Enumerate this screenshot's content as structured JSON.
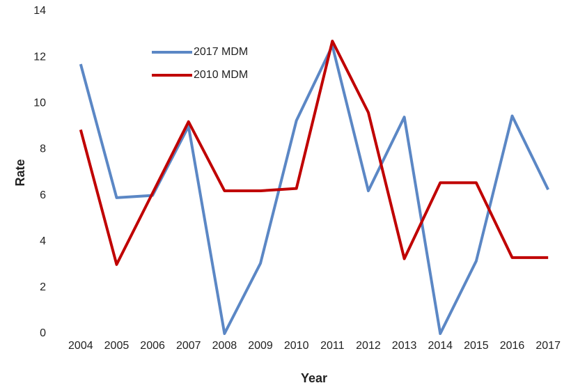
{
  "chart_data": {
    "type": "line",
    "x_label": "Year",
    "y_label": "Rate",
    "categories": [
      "2004",
      "2005",
      "2006",
      "2007",
      "2008",
      "2009",
      "2010",
      "2011",
      "2012",
      "2013",
      "2014",
      "2015",
      "2016",
      "2017"
    ],
    "series": [
      {
        "name": "2017 MDM",
        "color": "#5b87c5",
        "values": [
          11.7,
          5.9,
          6.0,
          9.0,
          0,
          3.05,
          9.25,
          12.5,
          6.2,
          9.4,
          0,
          3.15,
          9.45,
          6.25
        ]
      },
      {
        "name": "2010 MDM",
        "color": "#c00000",
        "values": [
          8.85,
          3.0,
          6.1,
          9.2,
          6.2,
          6.2,
          6.3,
          12.7,
          9.6,
          3.25,
          6.55,
          6.55,
          3.3,
          3.3
        ]
      }
    ],
    "ylim": [
      0,
      14
    ],
    "yticks": [
      0,
      2,
      4,
      6,
      8,
      10,
      12,
      14
    ],
    "grid": false,
    "legend": "upper left"
  }
}
